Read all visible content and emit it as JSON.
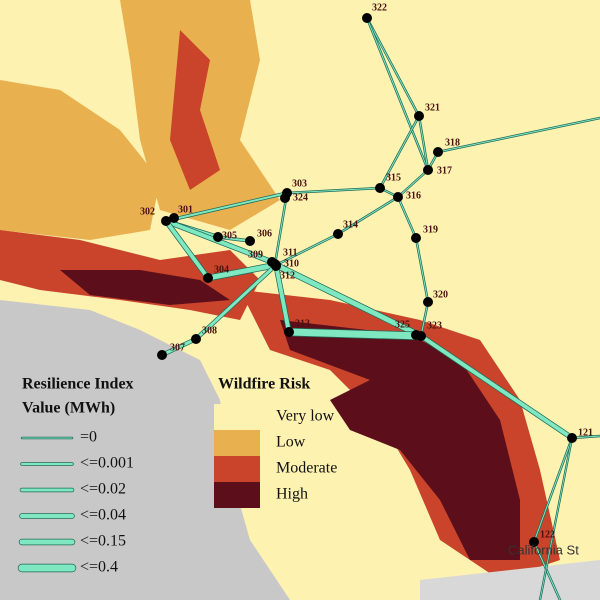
{
  "map": {
    "nodes": [
      "322",
      "321",
      "318",
      "317",
      "315",
      "316",
      "303",
      "324",
      "314",
      "319",
      "302",
      "301",
      "305",
      "306",
      "309",
      "311",
      "310",
      "312",
      "304",
      "313",
      "325",
      "323",
      "320",
      "308",
      "307",
      "121",
      "122"
    ],
    "place_label": "California St",
    "legend_resilience": {
      "title": [
        "Resilience Index",
        "Value (MWh)"
      ],
      "entries": [
        "=0",
        "<=0.001",
        "<=0.02",
        "<=0.04",
        "<=0.15",
        "<=0.4"
      ]
    },
    "legend_wildfire": {
      "title": "Wildfire Risk",
      "entries": [
        "Very low",
        "Low",
        "Moderate",
        "High"
      ]
    }
  }
}
